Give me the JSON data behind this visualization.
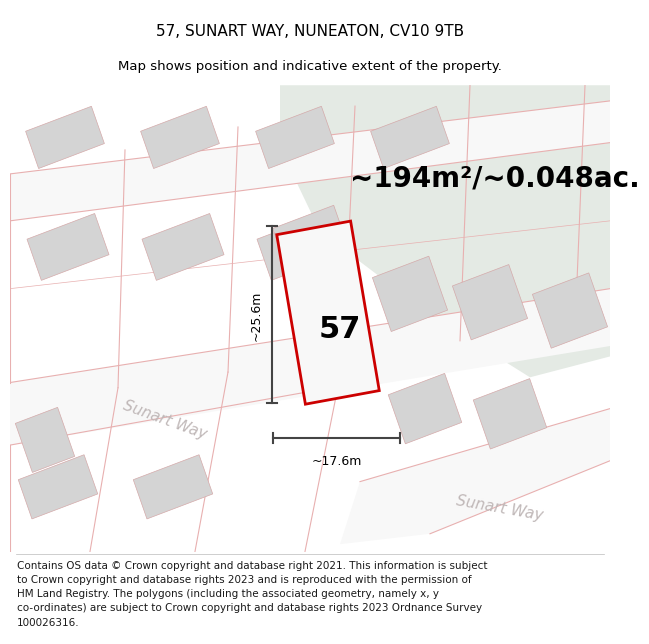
{
  "title": "57, SUNART WAY, NUNEATON, CV10 9TB",
  "subtitle": "Map shows position and indicative extent of the property.",
  "area_text": "~194m²/~0.048ac.",
  "label_57": "57",
  "dim_height": "~25.6m",
  "dim_width": "~17.6m",
  "street_label1": "Sunart Way",
  "street_label2": "Sunart Way",
  "footer_lines": [
    "Contains OS data © Crown copyright and database right 2021. This information is subject",
    "to Crown copyright and database rights 2023 and is reproduced with the permission of",
    "HM Land Registry. The polygons (including the associated geometry, namely x, y",
    "co-ordinates) are subject to Crown copyright and database rights 2023 Ordnance Survey",
    "100026316."
  ],
  "bg_map_color": "#eeeeec",
  "bg_green_color": "#e4eae4",
  "road_fill": "#f8f8f8",
  "building_fill": "#d4d4d4",
  "building_edge_color": "#d4aaaa",
  "plot_edge_color": "#cc0000",
  "plot_fill": "#f8f8f8",
  "dim_color": "#444444",
  "street_text_color": "#c0b8b8",
  "title_fontsize": 11,
  "subtitle_fontsize": 9.5,
  "area_fontsize": 20,
  "label_fontsize": 22,
  "dim_fontsize": 9,
  "street_fontsize": 11,
  "footer_fontsize": 7.5,
  "road_edge_color": "#e8b0b0"
}
